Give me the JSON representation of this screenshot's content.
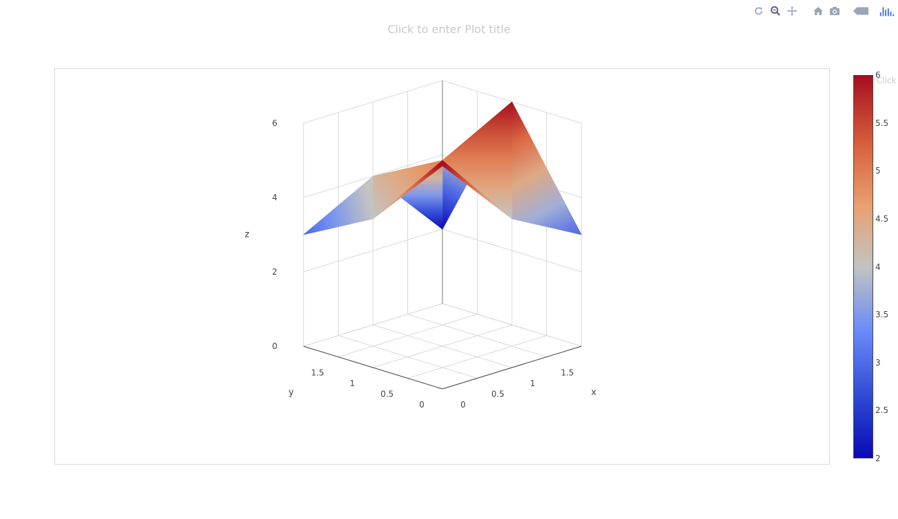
{
  "modebar": {
    "buttons": [
      {
        "name": "reset-camera-icon"
      },
      {
        "name": "zoom-icon"
      },
      {
        "name": "pan-icon"
      },
      {
        "name": "home-icon"
      },
      {
        "name": "camera-icon"
      },
      {
        "name": "hover-label-icon"
      },
      {
        "name": "plotly-logo-icon"
      }
    ]
  },
  "title": "Click to enter Plot title",
  "colorbar": {
    "title": "Click to enter",
    "ticks": [
      "2",
      "2.5",
      "3",
      "3.5",
      "4",
      "4.5",
      "5",
      "5.5",
      "6"
    ],
    "colors": [
      "#0a0ab4",
      "#2c46d2",
      "#6a8af8",
      "#c3c3c3",
      "#e8a070",
      "#d8603c",
      "#a50f1f"
    ]
  },
  "chart_data": {
    "type": "surface",
    "title": "",
    "xlabel": "x",
    "ylabel": "y",
    "zlabel": "z",
    "x": [
      0,
      1,
      2
    ],
    "y": [
      0,
      1,
      2
    ],
    "z": [
      [
        6,
        4,
        3
      ],
      [
        4,
        5,
        6
      ],
      [
        3,
        4,
        2
      ]
    ],
    "x_ticks": [
      "0",
      "0.5",
      "1",
      "1.5"
    ],
    "y_ticks": [
      "0",
      "0.5",
      "1",
      "1.5"
    ],
    "z_ticks": [
      "0",
      "2",
      "4",
      "6"
    ],
    "zlim": [
      0,
      6
    ],
    "colorscale": "RdBu (reversed)",
    "cmin": 2,
    "cmax": 6,
    "grid": true
  }
}
